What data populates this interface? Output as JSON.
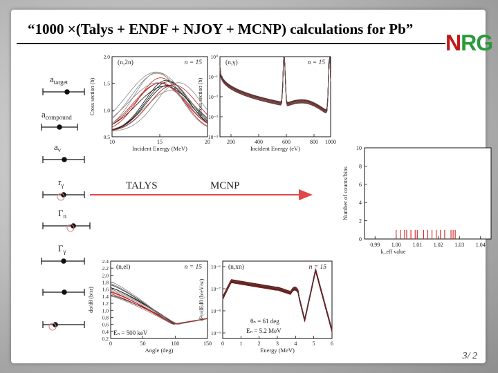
{
  "title": "“1000 ×(Talys + ENDF + NJOY + MCNP) calculations for Pb”",
  "logo": {
    "n": "N",
    "rg": "RG"
  },
  "page_number": "3/ 2",
  "params": [
    {
      "label": "a_target",
      "main": "a",
      "sub": "target"
    },
    {
      "label": "a_compound",
      "main": "a",
      "sub": "compound"
    },
    {
      "label": "a_ν",
      "main": "a",
      "sub": "ν"
    },
    {
      "label": "r_γ",
      "main": "r",
      "sub": "γ"
    },
    {
      "label": "Γ_n",
      "main": "Γ",
      "sub": "n"
    },
    {
      "label": "Γ_γ",
      "main": "Γ",
      "sub": "γ"
    },
    {
      "label": "",
      "main": "",
      "sub": ""
    },
    {
      "label": "",
      "main": "",
      "sub": ""
    }
  ],
  "arrow": {
    "left_label": "TALYS",
    "right_label": "MCNP",
    "color": "#e04848"
  },
  "colors": {
    "red": "#c02020",
    "grey": "#888888",
    "black": "#111111"
  },
  "panel_n2n": {
    "reaction": "(n,2n)",
    "n_label": "n = 15",
    "ylabel": "Cross section (b)",
    "xlabel": "Incident Energy (MeV)",
    "xticks": [
      "10",
      "15",
      "20"
    ],
    "yticks": [
      "0.5",
      "1.0",
      "1.5",
      "2.0"
    ]
  },
  "panel_ng": {
    "reaction": "(n,γ)",
    "n_label": "n = 15",
    "ylabel": "Cross section (b)",
    "xlabel": "Incident Energy (eV)",
    "xticks": [
      "200",
      "400",
      "600",
      "800",
      "1000"
    ],
    "yticks": [
      "10⁻⁴",
      "10⁻³",
      "10⁻²",
      "10⁻¹",
      "10⁰"
    ]
  },
  "panel_el": {
    "reaction": "(n,el)",
    "n_label": "n = 15",
    "ylabel": "dσ/dθ (b/sr)",
    "xlabel": "Angle (deg)",
    "xticks": [
      "0",
      "50",
      "100",
      "150"
    ],
    "yticks": [
      "0.2",
      "0.4",
      "0.6",
      "0.8",
      "1.0",
      "1.2",
      "1.4",
      "1.6",
      "1.8",
      "2.0",
      "2.2",
      "2.4"
    ],
    "energy_note": "Eₙ = 500 keV"
  },
  "panel_xn": {
    "reaction": "(n,xn)",
    "n_label": "n = 15",
    "ylabel": "d²σ/dEdθ (b/eV/sr)",
    "xlabel": "Energy (MeV)",
    "xticks": [
      "0",
      "1",
      "2",
      "3",
      "4",
      "5",
      "6"
    ],
    "yticks": [
      "10⁻⁹",
      "10⁻⁸",
      "10⁻⁷",
      "10⁻⁶"
    ],
    "angle_note": "θₙ = 61 deg",
    "energy_note": "Eₙ = 5.2 MeV"
  },
  "chart_data": {
    "type": "bar",
    "xlabel": "k_eff value",
    "ylabel": "Number of counts/bins",
    "xticks": [
      "0.99",
      "1.00",
      "1.01",
      "1.02",
      "1.03",
      "1.04"
    ],
    "yticks": [
      "0",
      "2",
      "4",
      "6",
      "8",
      "10"
    ],
    "xlim": [
      0.985,
      1.045
    ],
    "ylim": [
      0,
      10
    ],
    "x": [
      1.0,
      1.002,
      1.004,
      1.005,
      1.007,
      1.009,
      1.01,
      1.013,
      1.015,
      1.017,
      1.019,
      1.021,
      1.023,
      1.026,
      1.027,
      1.028
    ],
    "values": [
      1,
      1,
      1,
      1,
      1,
      1,
      1,
      1,
      1,
      1,
      1,
      1,
      1,
      1,
      1,
      1
    ],
    "bar_color": "#d02020"
  }
}
